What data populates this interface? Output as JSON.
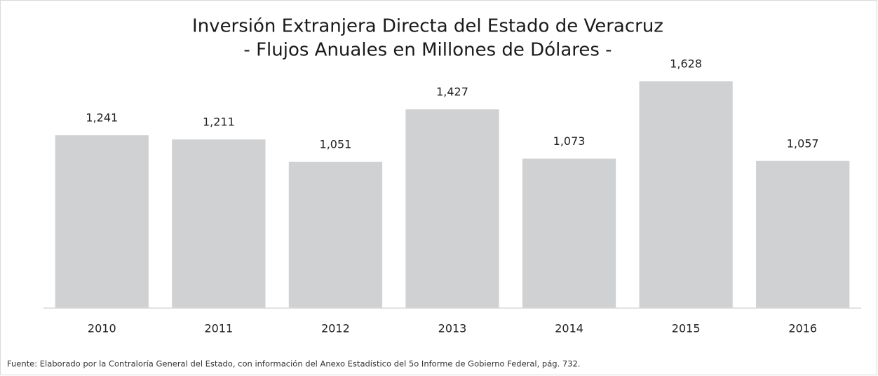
{
  "chart_data": {
    "type": "bar",
    "title": "Inversión Extranjera Directa del Estado de Veracruz",
    "subtitle": "- Flujos Anuales en Millones de Dólares -",
    "categories": [
      "2010",
      "2011",
      "2012",
      "2013",
      "2014",
      "2015",
      "2016"
    ],
    "values": [
      1241,
      1211,
      1051,
      1427,
      1073,
      1628,
      1057
    ],
    "value_labels": [
      "1,241",
      "1,211",
      "1,051",
      "1,427",
      "1,073",
      "1,628",
      "1,057"
    ],
    "color": "#d0d1d3",
    "ylim": [
      0,
      1800
    ],
    "source": "Fuente: Elaborado por la Contraloría General del Estado, con información del Anexo Estadístico del 5o Informe de Gobierno Federal, pág. 732."
  }
}
